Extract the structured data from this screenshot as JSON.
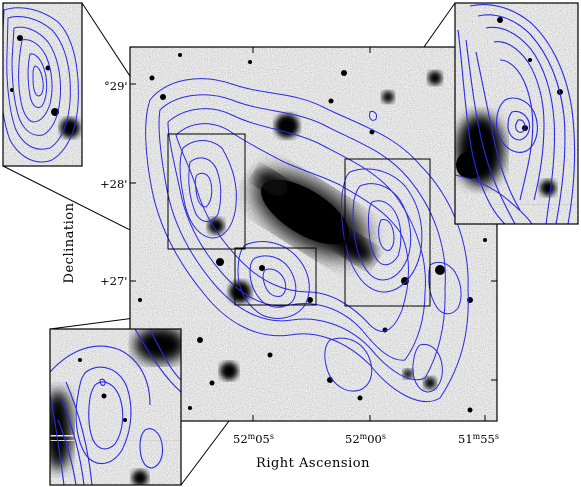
{
  "figure": {
    "xlabel": "Right Ascension",
    "ylabel": "Declination",
    "ra_ticks": [
      {
        "h": "52",
        "hs": "m",
        "m": "05",
        "ms": "s"
      },
      {
        "h": "52",
        "hs": "m",
        "m": "00",
        "ms": "s"
      },
      {
        "h": "51",
        "hs": "m",
        "m": "55",
        "ms": "s"
      }
    ],
    "dec_ticks": [
      "°29'",
      "+28'",
      "+27'"
    ],
    "colors": {
      "contour": "#2a2ae6",
      "box": "#000000"
    }
  }
}
